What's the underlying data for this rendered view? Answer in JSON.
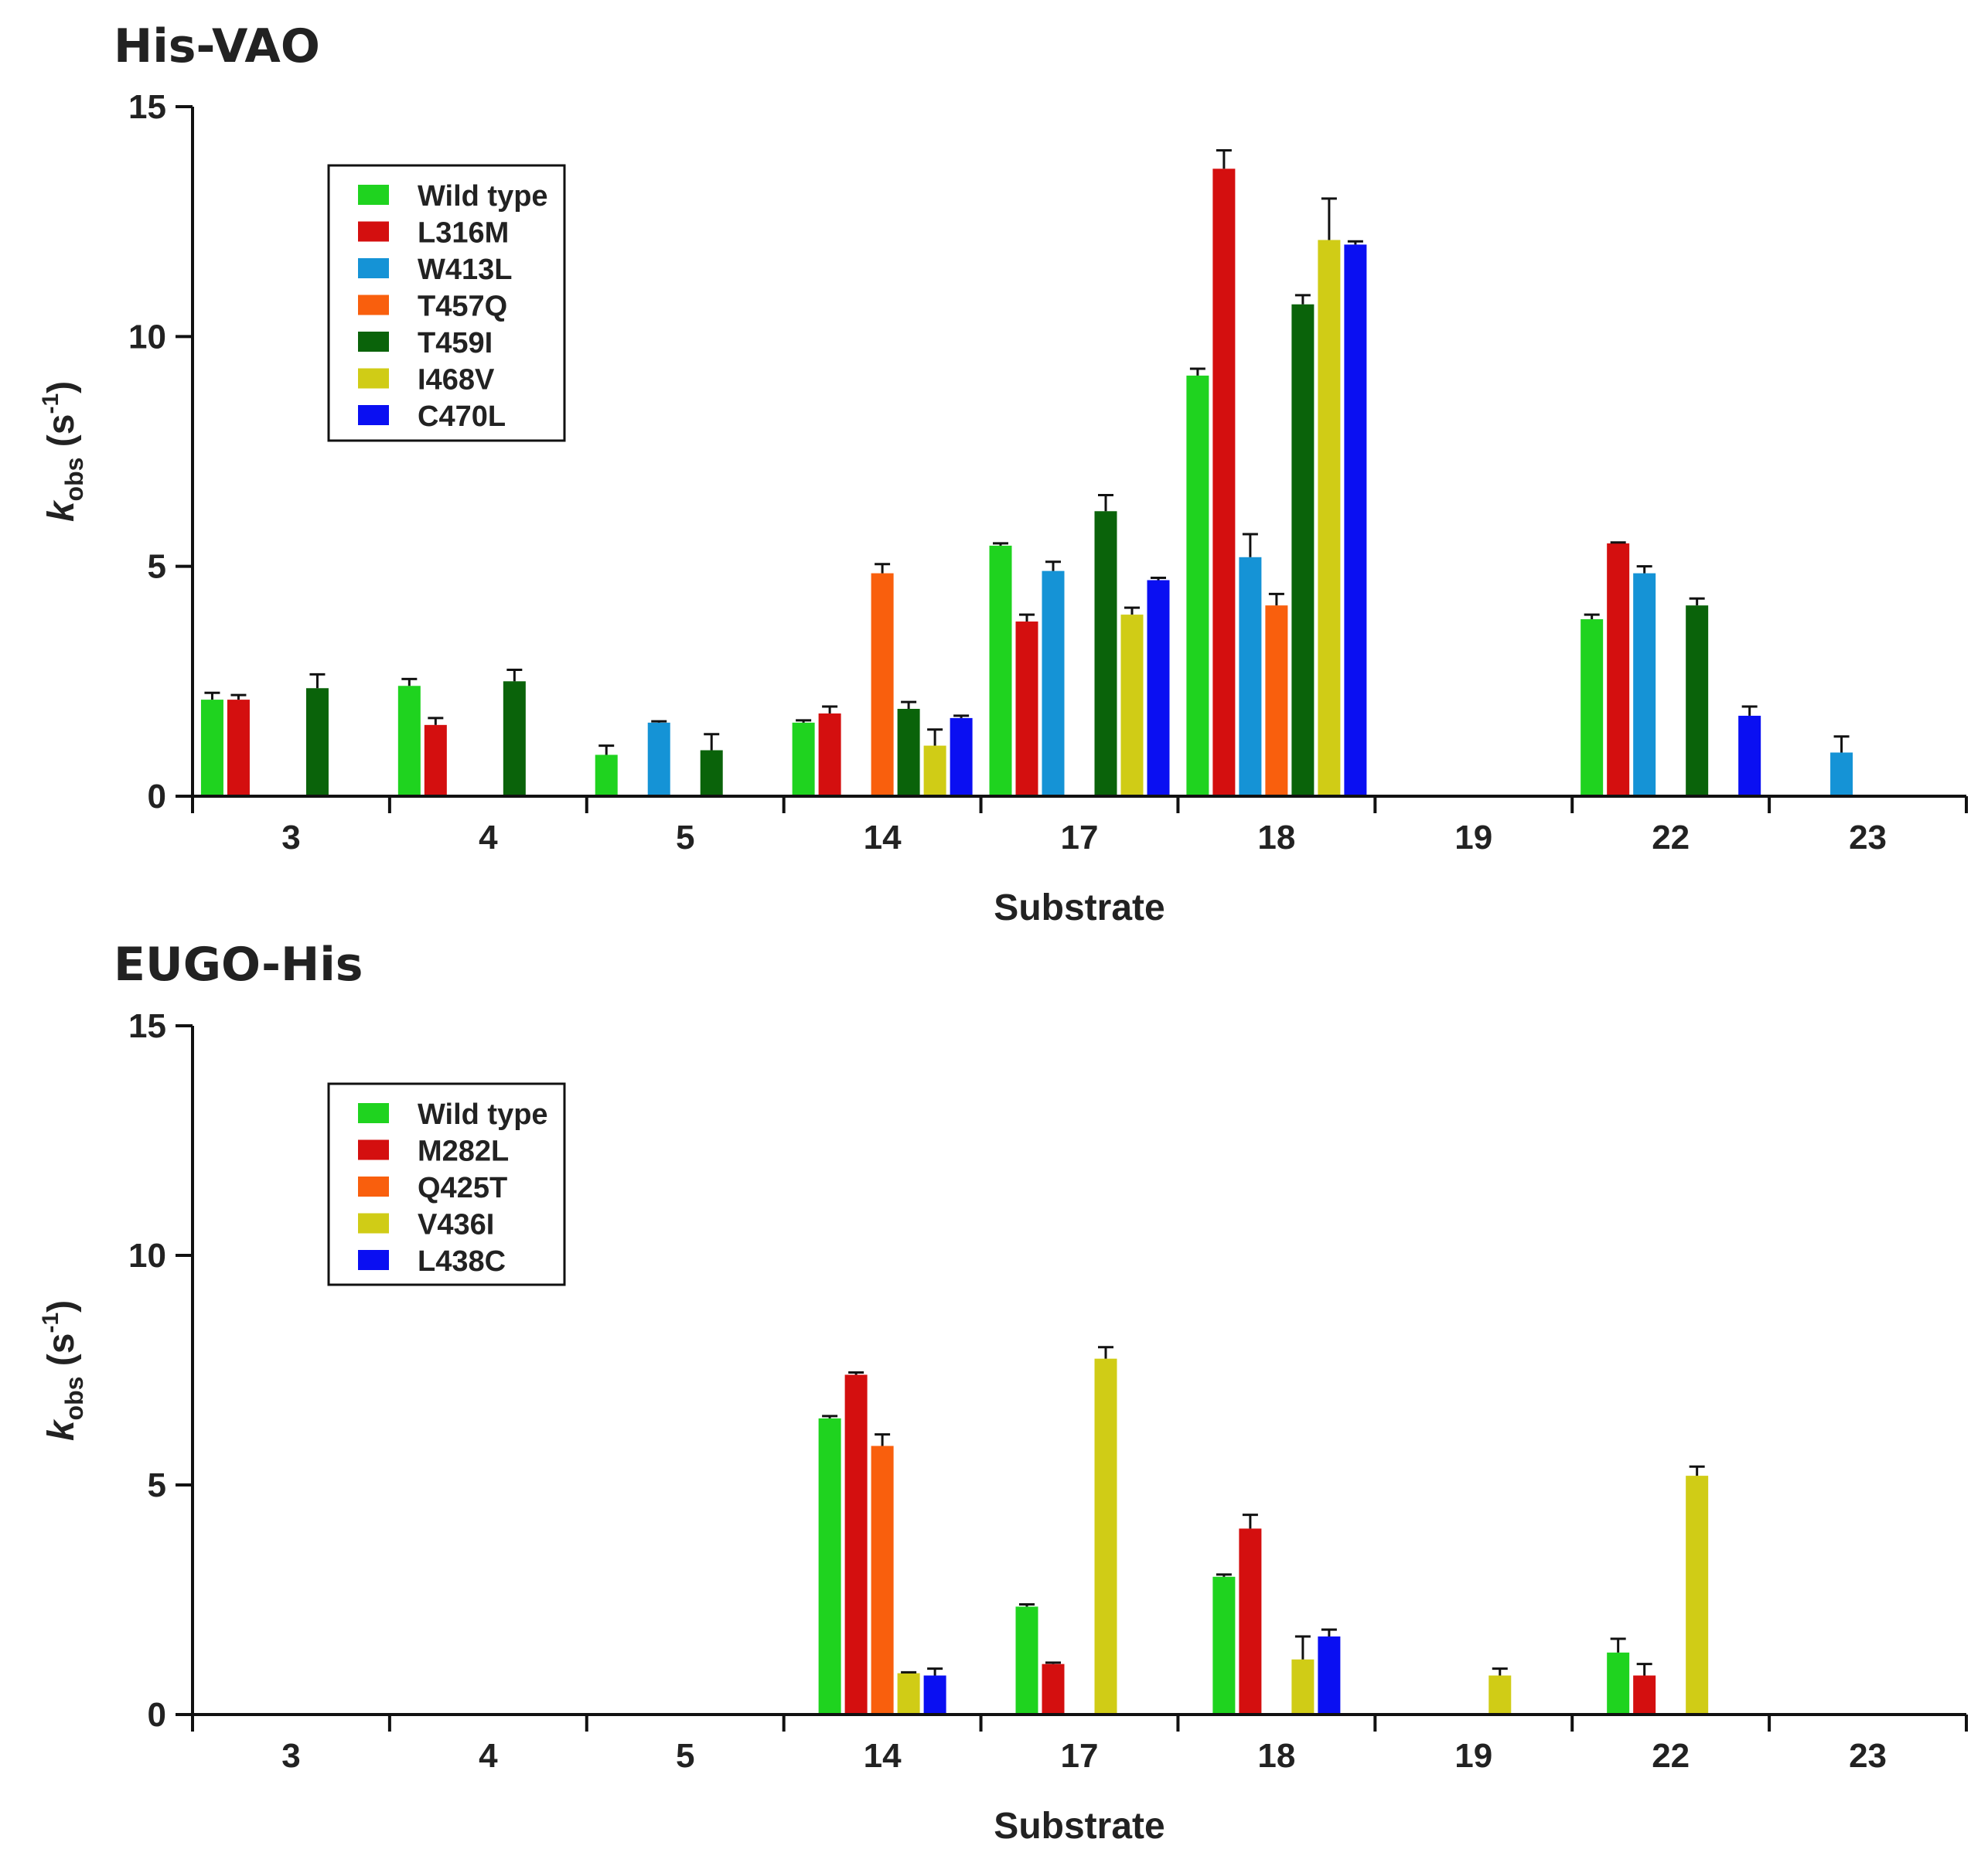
{
  "chart_data": [
    {
      "type": "bar",
      "title": "His-VAO",
      "xlabel": "Substrate",
      "ylabel": {
        "main": "k",
        "sub": "obs",
        "unit_open": " (s",
        "unit_sup": "-1",
        "unit_close": ")"
      },
      "ylim": [
        0,
        15
      ],
      "yticks": [
        "0",
        "5",
        "10",
        "15"
      ],
      "categories": [
        "3",
        "4",
        "5",
        "14",
        "17",
        "18",
        "19",
        "22",
        "23"
      ],
      "series": [
        {
          "name": "Wild type",
          "color": "#1fd31f",
          "values": [
            2.1,
            2.4,
            0.9,
            1.6,
            5.45,
            9.15,
            null,
            3.85,
            null
          ],
          "errors": [
            0.15,
            0.15,
            0.2,
            0.05,
            0.05,
            0.15,
            null,
            0.1,
            null
          ]
        },
        {
          "name": "L316M",
          "color": "#d40f0f",
          "values": [
            2.1,
            1.55,
            null,
            1.8,
            3.8,
            13.65,
            null,
            5.5,
            null
          ],
          "errors": [
            0.1,
            0.15,
            null,
            0.15,
            0.15,
            0.4,
            null,
            0.02,
            null
          ]
        },
        {
          "name": "W413L",
          "color": "#1593d6",
          "values": [
            null,
            null,
            1.6,
            null,
            4.9,
            5.2,
            null,
            4.85,
            0.95
          ],
          "errors": [
            null,
            null,
            0.03,
            null,
            0.2,
            0.5,
            null,
            0.15,
            0.35
          ]
        },
        {
          "name": "T457Q",
          "color": "#f95f0d",
          "values": [
            null,
            null,
            null,
            4.85,
            null,
            4.15,
            null,
            null,
            null
          ],
          "errors": [
            null,
            null,
            null,
            0.2,
            null,
            0.25,
            null,
            null,
            null
          ]
        },
        {
          "name": "T459I",
          "color": "#0a630a",
          "values": [
            2.35,
            2.5,
            1.0,
            1.9,
            6.2,
            10.7,
            null,
            4.15,
            null
          ],
          "errors": [
            0.3,
            0.25,
            0.35,
            0.15,
            0.35,
            0.2,
            null,
            0.15,
            null
          ]
        },
        {
          "name": "I468V",
          "color": "#d0cc16",
          "values": [
            null,
            null,
            null,
            1.1,
            3.95,
            12.1,
            null,
            null,
            null
          ],
          "errors": [
            null,
            null,
            null,
            0.35,
            0.15,
            0.9,
            null,
            null,
            null
          ]
        },
        {
          "name": "C470L",
          "color": "#0a0ff2",
          "values": [
            null,
            null,
            null,
            1.7,
            4.7,
            12.0,
            null,
            1.75,
            null
          ],
          "errors": [
            null,
            null,
            null,
            0.05,
            0.05,
            0.07,
            null,
            0.2,
            null
          ]
        }
      ]
    },
    {
      "type": "bar",
      "title": "EUGO-His",
      "xlabel": "Substrate",
      "ylabel": {
        "main": "k",
        "sub": "obs",
        "unit_open": " (s",
        "unit_sup": "-1",
        "unit_close": ")"
      },
      "ylim": [
        0,
        15
      ],
      "yticks": [
        "0",
        "5",
        "10",
        "15"
      ],
      "categories": [
        "3",
        "4",
        "5",
        "14",
        "17",
        "18",
        "19",
        "22",
        "23"
      ],
      "series": [
        {
          "name": "Wild type",
          "color": "#1fd31f",
          "values": [
            null,
            null,
            null,
            6.45,
            2.35,
            3.0,
            null,
            1.35,
            null
          ],
          "errors": [
            null,
            null,
            null,
            0.05,
            0.05,
            0.05,
            null,
            0.3,
            null
          ]
        },
        {
          "name": "M282L",
          "color": "#d40f0f",
          "values": [
            null,
            null,
            null,
            7.4,
            1.1,
            4.05,
            null,
            0.85,
            null
          ],
          "errors": [
            null,
            null,
            null,
            0.05,
            0.03,
            0.3,
            null,
            0.25,
            null
          ]
        },
        {
          "name": "Q425T",
          "color": "#f95f0d",
          "values": [
            null,
            null,
            null,
            5.85,
            null,
            null,
            null,
            null,
            null
          ],
          "errors": [
            null,
            null,
            null,
            0.25,
            null,
            null,
            null,
            null,
            null
          ]
        },
        {
          "name": "V436I",
          "color": "#d0cc16",
          "values": [
            null,
            null,
            null,
            0.9,
            7.75,
            1.2,
            0.85,
            5.2,
            null
          ],
          "errors": [
            null,
            null,
            null,
            0.02,
            0.25,
            0.5,
            0.15,
            0.2,
            null
          ]
        },
        {
          "name": "L438C",
          "color": "#0a0ff2",
          "values": [
            null,
            null,
            null,
            0.85,
            null,
            1.7,
            null,
            null,
            null
          ],
          "errors": [
            null,
            null,
            null,
            0.15,
            null,
            0.15,
            null,
            null,
            null
          ]
        }
      ]
    }
  ]
}
